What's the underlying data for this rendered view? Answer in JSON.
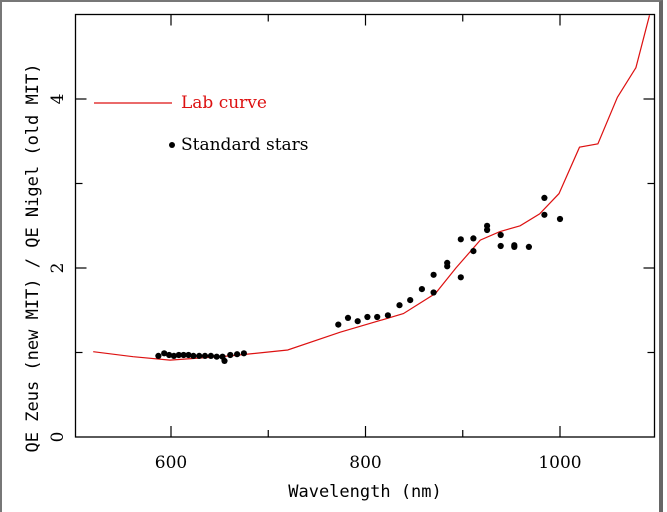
{
  "chart_data": {
    "type": "line",
    "title": "",
    "xlabel": "Wavelength (nm)",
    "ylabel": "QE Zeus (new MIT) / QE Nigel (old MIT)",
    "xlim": [
      505,
      1100
    ],
    "ylim": [
      0,
      5
    ],
    "x_ticks": [
      600,
      800,
      1000
    ],
    "x_minor_ticks": [
      700,
      900
    ],
    "y_ticks": [
      0,
      2,
      4
    ],
    "y_minor_ticks": [
      1,
      3
    ],
    "grid": false,
    "legend_position": "top-left",
    "colors": {
      "lab_curve": "#dd1111",
      "stars": "#000000",
      "axes": "#000000"
    },
    "series": [
      {
        "name": "Lab curve",
        "kind": "line",
        "x": [
          520,
          561,
          599,
          661,
          720,
          774,
          839,
          872,
          893,
          918,
          938,
          959,
          979,
          999,
          1020,
          1039,
          1059,
          1078,
          1092
        ],
        "y": [
          1.01,
          0.95,
          0.91,
          0.96,
          1.03,
          1.24,
          1.46,
          1.7,
          2.0,
          2.33,
          2.43,
          2.5,
          2.64,
          2.88,
          3.43,
          3.47,
          4.02,
          4.37,
          4.99
        ]
      },
      {
        "name": "Standard stars",
        "kind": "scatter",
        "x": [
          587,
          593,
          598,
          603,
          608,
          613,
          618,
          623,
          629,
          635,
          641,
          647,
          653,
          655,
          661,
          668,
          675,
          772,
          782,
          792,
          802,
          812,
          823,
          835,
          846,
          858,
          870,
          870,
          884,
          884,
          898,
          898,
          911,
          911,
          925,
          925,
          939,
          939,
          953,
          953,
          968,
          984,
          984,
          1000
        ],
        "y": [
          0.96,
          0.99,
          0.97,
          0.96,
          0.97,
          0.97,
          0.97,
          0.96,
          0.96,
          0.96,
          0.96,
          0.95,
          0.95,
          0.9,
          0.97,
          0.98,
          0.99,
          1.33,
          1.41,
          1.37,
          1.42,
          1.42,
          1.44,
          1.56,
          1.62,
          1.75,
          1.71,
          1.92,
          2.06,
          2.02,
          2.34,
          1.89,
          2.35,
          2.2,
          2.5,
          2.45,
          2.39,
          2.26,
          2.27,
          2.25,
          2.25,
          2.83,
          2.63,
          2.58
        ]
      }
    ]
  }
}
